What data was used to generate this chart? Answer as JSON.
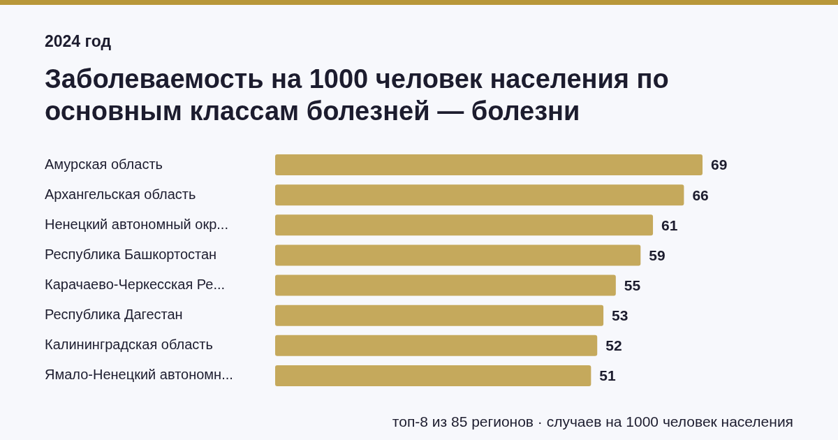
{
  "chart_data": {
    "type": "bar",
    "orientation": "horizontal",
    "subtitle": "2024 год",
    "title": "Заболеваемость на 1000 человек населения по основным классам болезней — болезни",
    "categories": [
      "Амурская область",
      "Архангельская область",
      "Ненецкий автономный окр...",
      "Республика Башкортостан",
      "Карачаево-Черкесская Ре...",
      "Республика Дагестан",
      "Калининградская область",
      "Ямало-Ненецкий автономн..."
    ],
    "values": [
      69,
      66,
      61,
      59,
      55,
      53,
      52,
      51
    ],
    "color": "#c5a95c",
    "data_labels": true,
    "grid": false,
    "legend": false,
    "tick_labels": "y",
    "annotations": [
      "топ-8 из 85 регионов · случаев на 1000 человек населения"
    ]
  }
}
